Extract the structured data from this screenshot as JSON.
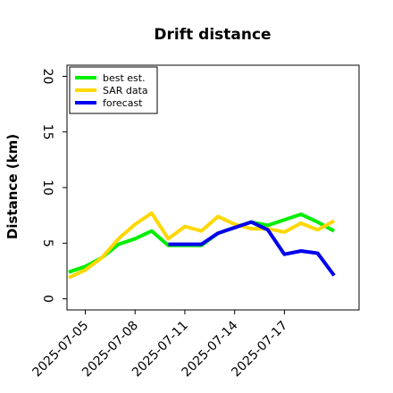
{
  "chart_data": {
    "type": "line",
    "title": "Drift distance",
    "xlabel": "",
    "ylabel": "Distance (km)",
    "ylim": [
      -1,
      21
    ],
    "yticks": [
      0,
      5,
      10,
      15,
      20
    ],
    "xlim": [
      "2025-07-03T21:30",
      "2025-07-21T12:00"
    ],
    "xticks": [
      "2025-07-05",
      "2025-07-08",
      "2025-07-11",
      "2025-07-14",
      "2025-07-17"
    ],
    "grid": false,
    "legend_position": "top-left",
    "x": [
      "2025-07-04",
      "2025-07-05",
      "2025-07-06",
      "2025-07-07",
      "2025-07-08",
      "2025-07-09",
      "2025-07-10",
      "2025-07-11",
      "2025-07-12",
      "2025-07-13",
      "2025-07-14",
      "2025-07-15",
      "2025-07-16",
      "2025-07-17",
      "2025-07-18",
      "2025-07-19",
      "2025-07-20"
    ],
    "series": [
      {
        "name": "best est.",
        "color": "#00ee00",
        "values": [
          2.4,
          2.9,
          3.7,
          4.9,
          5.4,
          6.1,
          4.8,
          4.8,
          4.8,
          5.9,
          6.4,
          6.9,
          6.6,
          7.1,
          7.6,
          6.9,
          6.1
        ]
      },
      {
        "name": "SAR data",
        "color": "#ffd700",
        "values": [
          1.9,
          2.6,
          3.7,
          5.4,
          6.7,
          7.7,
          5.4,
          6.5,
          6.1,
          7.4,
          6.7,
          6.3,
          6.3,
          6.0,
          6.8,
          6.2,
          7.0
        ]
      },
      {
        "name": "forecast",
        "color": "#0000ee",
        "x": [
          "2025-07-10",
          "2025-07-11",
          "2025-07-12",
          "2025-07-13",
          "2025-07-14",
          "2025-07-15",
          "2025-07-16",
          "2025-07-17",
          "2025-07-18",
          "2025-07-19",
          "2025-07-20"
        ],
        "values": [
          4.9,
          4.9,
          4.9,
          5.9,
          6.4,
          6.9,
          6.2,
          4.0,
          4.3,
          4.1,
          2.1
        ]
      }
    ]
  }
}
